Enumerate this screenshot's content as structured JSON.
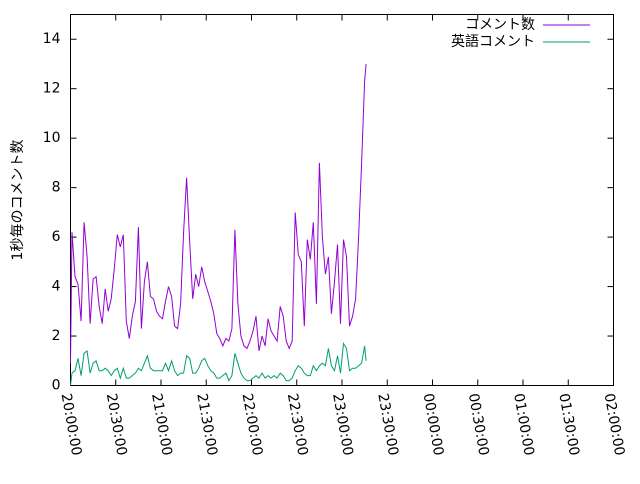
{
  "chart_data": {
    "type": "line",
    "ylabel": "1秒毎のコメント数",
    "xlabel": "",
    "ylim": [
      0,
      15
    ],
    "yticks": [
      0,
      2,
      4,
      6,
      8,
      10,
      12,
      14
    ],
    "x_range": [
      "20:00:00",
      "02:00:00"
    ],
    "xticks": [
      "20:00:00",
      "20:30:00",
      "21:00:00",
      "21:30:00",
      "22:00:00",
      "22:30:00",
      "23:00:00",
      "23:30:00",
      "00:00:00",
      "00:30:00",
      "01:00:00",
      "01:30:00",
      "02:00:00"
    ],
    "legend_position": "top-right",
    "series": [
      {
        "name": "コメント数",
        "color": "#9400d3",
        "points": [
          [
            "20:00:00",
            0.9
          ],
          [
            "20:01:00",
            6.2
          ],
          [
            "20:03:00",
            4.4
          ],
          [
            "20:05:00",
            4.1
          ],
          [
            "20:07:00",
            2.6
          ],
          [
            "20:09:00",
            6.6
          ],
          [
            "20:11:00",
            5.2
          ],
          [
            "20:13:00",
            2.5
          ],
          [
            "20:15:00",
            4.3
          ],
          [
            "20:17:00",
            4.4
          ],
          [
            "20:19:00",
            3.2
          ],
          [
            "20:21:00",
            2.5
          ],
          [
            "20:23:00",
            3.9
          ],
          [
            "20:25:00",
            3.0
          ],
          [
            "20:27:00",
            3.5
          ],
          [
            "20:29:00",
            4.7
          ],
          [
            "20:31:00",
            6.1
          ],
          [
            "20:33:00",
            5.6
          ],
          [
            "20:35:00",
            6.1
          ],
          [
            "20:37:00",
            2.6
          ],
          [
            "20:39:00",
            1.9
          ],
          [
            "20:41:00",
            2.8
          ],
          [
            "20:43:00",
            3.4
          ],
          [
            "20:45:00",
            6.4
          ],
          [
            "20:47:00",
            2.3
          ],
          [
            "20:49:00",
            4.2
          ],
          [
            "20:51:00",
            5.0
          ],
          [
            "20:53:00",
            3.6
          ],
          [
            "20:55:00",
            3.5
          ],
          [
            "20:57:00",
            3.0
          ],
          [
            "20:59:00",
            2.8
          ],
          [
            "21:01:00",
            2.7
          ],
          [
            "21:03:00",
            3.4
          ],
          [
            "21:05:00",
            4.0
          ],
          [
            "21:07:00",
            3.6
          ],
          [
            "21:09:00",
            2.4
          ],
          [
            "21:11:00",
            2.3
          ],
          [
            "21:13:00",
            3.3
          ],
          [
            "21:15:00",
            6.2
          ],
          [
            "21:17:00",
            8.4
          ],
          [
            "21:19:00",
            5.8
          ],
          [
            "21:21:00",
            3.5
          ],
          [
            "21:23:00",
            4.5
          ],
          [
            "21:25:00",
            4.0
          ],
          [
            "21:27:00",
            4.8
          ],
          [
            "21:29:00",
            4.2
          ],
          [
            "21:31:00",
            3.8
          ],
          [
            "21:33:00",
            3.4
          ],
          [
            "21:35:00",
            2.9
          ],
          [
            "21:37:00",
            2.1
          ],
          [
            "21:39:00",
            1.9
          ],
          [
            "21:41:00",
            1.6
          ],
          [
            "21:43:00",
            1.9
          ],
          [
            "21:45:00",
            1.8
          ],
          [
            "21:47:00",
            2.3
          ],
          [
            "21:49:00",
            6.3
          ],
          [
            "21:51:00",
            3.3
          ],
          [
            "21:53:00",
            2.0
          ],
          [
            "21:55:00",
            1.6
          ],
          [
            "21:57:00",
            1.5
          ],
          [
            "21:59:00",
            1.8
          ],
          [
            "22:01:00",
            2.2
          ],
          [
            "22:03:00",
            2.8
          ],
          [
            "22:05:00",
            1.4
          ],
          [
            "22:07:00",
            2.0
          ],
          [
            "22:09:00",
            1.6
          ],
          [
            "22:11:00",
            2.7
          ],
          [
            "22:13:00",
            2.2
          ],
          [
            "22:15:00",
            2.0
          ],
          [
            "22:17:00",
            1.8
          ],
          [
            "22:19:00",
            3.2
          ],
          [
            "22:21:00",
            2.8
          ],
          [
            "22:23:00",
            1.8
          ],
          [
            "22:25:00",
            1.5
          ],
          [
            "22:27:00",
            1.8
          ],
          [
            "22:29:00",
            7.0
          ],
          [
            "22:31:00",
            5.3
          ],
          [
            "22:33:00",
            5.0
          ],
          [
            "22:35:00",
            2.4
          ],
          [
            "22:37:00",
            5.9
          ],
          [
            "22:39:00",
            5.1
          ],
          [
            "22:41:00",
            6.6
          ],
          [
            "22:43:00",
            3.3
          ],
          [
            "22:45:00",
            9.0
          ],
          [
            "22:47:00",
            6.0
          ],
          [
            "22:49:00",
            4.5
          ],
          [
            "22:51:00",
            5.2
          ],
          [
            "22:53:00",
            2.9
          ],
          [
            "22:55:00",
            4.2
          ],
          [
            "22:57:00",
            5.7
          ],
          [
            "22:59:00",
            2.5
          ],
          [
            "23:01:00",
            5.9
          ],
          [
            "23:03:00",
            5.2
          ],
          [
            "23:05:00",
            2.4
          ],
          [
            "23:07:00",
            2.8
          ],
          [
            "23:09:00",
            3.5
          ],
          [
            "23:11:00",
            6.0
          ],
          [
            "23:13:00",
            9.0
          ],
          [
            "23:15:00",
            12.3
          ],
          [
            "23:16:00",
            13.0
          ]
        ]
      },
      {
        "name": "英語コメント",
        "color": "#009e73",
        "points": [
          [
            "20:00:00",
            0.0
          ],
          [
            "20:01:00",
            0.5
          ],
          [
            "20:03:00",
            0.6
          ],
          [
            "20:05:00",
            1.1
          ],
          [
            "20:07:00",
            0.4
          ],
          [
            "20:09:00",
            1.3
          ],
          [
            "20:11:00",
            1.4
          ],
          [
            "20:13:00",
            0.5
          ],
          [
            "20:15:00",
            0.9
          ],
          [
            "20:17:00",
            1.0
          ],
          [
            "20:19:00",
            0.6
          ],
          [
            "20:21:00",
            0.6
          ],
          [
            "20:23:00",
            0.7
          ],
          [
            "20:25:00",
            0.6
          ],
          [
            "20:27:00",
            0.4
          ],
          [
            "20:29:00",
            0.6
          ],
          [
            "20:31:00",
            0.7
          ],
          [
            "20:33:00",
            0.3
          ],
          [
            "20:35:00",
            0.7
          ],
          [
            "20:37:00",
            0.3
          ],
          [
            "20:39:00",
            0.3
          ],
          [
            "20:41:00",
            0.4
          ],
          [
            "20:43:00",
            0.5
          ],
          [
            "20:45:00",
            0.7
          ],
          [
            "20:47:00",
            0.6
          ],
          [
            "20:49:00",
            0.9
          ],
          [
            "20:51:00",
            1.2
          ],
          [
            "20:53:00",
            0.7
          ],
          [
            "20:55:00",
            0.6
          ],
          [
            "20:57:00",
            0.6
          ],
          [
            "20:59:00",
            0.6
          ],
          [
            "21:01:00",
            0.6
          ],
          [
            "21:03:00",
            0.9
          ],
          [
            "21:05:00",
            0.6
          ],
          [
            "21:07:00",
            1.0
          ],
          [
            "21:09:00",
            0.6
          ],
          [
            "21:11:00",
            0.4
          ],
          [
            "21:13:00",
            0.5
          ],
          [
            "21:15:00",
            0.5
          ],
          [
            "21:17:00",
            1.2
          ],
          [
            "21:19:00",
            1.1
          ],
          [
            "21:21:00",
            0.5
          ],
          [
            "21:23:00",
            0.5
          ],
          [
            "21:25:00",
            0.7
          ],
          [
            "21:27:00",
            1.0
          ],
          [
            "21:29:00",
            1.1
          ],
          [
            "21:31:00",
            0.8
          ],
          [
            "21:33:00",
            0.6
          ],
          [
            "21:35:00",
            0.5
          ],
          [
            "21:37:00",
            0.3
          ],
          [
            "21:39:00",
            0.3
          ],
          [
            "21:41:00",
            0.4
          ],
          [
            "21:43:00",
            0.5
          ],
          [
            "21:45:00",
            0.2
          ],
          [
            "21:47:00",
            0.4
          ],
          [
            "21:49:00",
            1.3
          ],
          [
            "21:51:00",
            0.9
          ],
          [
            "21:53:00",
            0.5
          ],
          [
            "21:55:00",
            0.3
          ],
          [
            "21:57:00",
            0.2
          ],
          [
            "21:59:00",
            0.2
          ],
          [
            "22:01:00",
            0.3
          ],
          [
            "22:03:00",
            0.4
          ],
          [
            "22:05:00",
            0.3
          ],
          [
            "22:07:00",
            0.5
          ],
          [
            "22:09:00",
            0.3
          ],
          [
            "22:11:00",
            0.4
          ],
          [
            "22:13:00",
            0.3
          ],
          [
            "22:15:00",
            0.4
          ],
          [
            "22:17:00",
            0.3
          ],
          [
            "22:19:00",
            0.5
          ],
          [
            "22:21:00",
            0.4
          ],
          [
            "22:23:00",
            0.2
          ],
          [
            "22:25:00",
            0.2
          ],
          [
            "22:27:00",
            0.3
          ],
          [
            "22:29:00",
            0.6
          ],
          [
            "22:31:00",
            0.8
          ],
          [
            "22:33:00",
            0.7
          ],
          [
            "22:35:00",
            0.5
          ],
          [
            "22:37:00",
            0.4
          ],
          [
            "22:39:00",
            0.4
          ],
          [
            "22:41:00",
            0.8
          ],
          [
            "22:43:00",
            0.6
          ],
          [
            "22:45:00",
            0.8
          ],
          [
            "22:47:00",
            0.9
          ],
          [
            "22:49:00",
            0.8
          ],
          [
            "22:51:00",
            1.5
          ],
          [
            "22:53:00",
            0.8
          ],
          [
            "22:55:00",
            0.6
          ],
          [
            "22:57:00",
            1.2
          ],
          [
            "22:59:00",
            0.5
          ],
          [
            "23:01:00",
            1.7
          ],
          [
            "23:03:00",
            1.5
          ],
          [
            "23:05:00",
            0.6
          ],
          [
            "23:07:00",
            0.7
          ],
          [
            "23:09:00",
            0.7
          ],
          [
            "23:11:00",
            0.8
          ],
          [
            "23:13:00",
            0.9
          ],
          [
            "23:15:00",
            1.6
          ],
          [
            "23:16:00",
            1.0
          ]
        ]
      }
    ]
  }
}
